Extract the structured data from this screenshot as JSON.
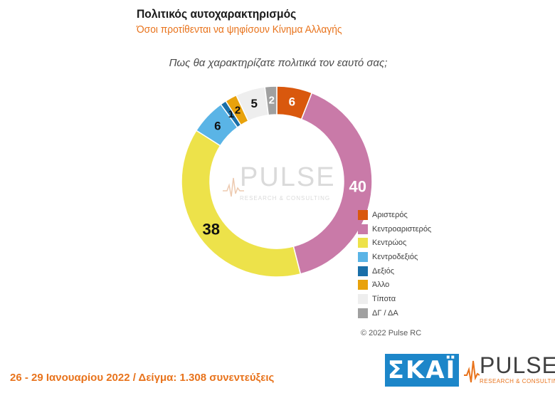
{
  "header": {
    "title": "Πολιτικός αυτοχαρακτηρισμός",
    "subtitle": "Όσοι προτίθενται να ψηφίσουν Κίνημα Αλλαγής"
  },
  "question": "Πως θα χαρακτηρίζατε πολιτικά τον εαυτό σας;",
  "chart_data": {
    "type": "pie",
    "style": "donut",
    "start_at_top": true,
    "direction": "clockwise",
    "legend_position": "right",
    "series": [
      {
        "name": "Αριστερός",
        "value": 6,
        "color": "#d9580d"
      },
      {
        "name": "Κεντροαριστερός",
        "value": 40,
        "color": "#c97aa8"
      },
      {
        "name": "Κεντρώος",
        "value": 38,
        "color": "#ede24a"
      },
      {
        "name": "Κεντροδεξιός",
        "value": 6,
        "color": "#5ab4e6"
      },
      {
        "name": "Δεξιός",
        "value": 1,
        "color": "#1a6fa8"
      },
      {
        "name": "Άλλο",
        "value": 2,
        "color": "#e8a20c"
      },
      {
        "name": "Τίποτα",
        "value": 5,
        "color": "#eeeeee"
      },
      {
        "name": "ΔΓ / ΔΑ",
        "value": 2,
        "color": "#a0a0a0"
      }
    ],
    "data_label_colors": [
      "#ffffff",
      "#ffffff",
      "#111111",
      "#111111",
      "#111111",
      "#111111",
      "#111111",
      "#ffffff"
    ]
  },
  "watermark": {
    "word": "PULSE",
    "sub": "RESEARCH & CONSULTING"
  },
  "copyright": "© 2022 Pulse RC",
  "footer": "26 - 29 Ιανουαρίου 2022 / Δείγμα: 1.308 συνεντεύξεις",
  "logos": {
    "skai": "ΣΚΑΪ",
    "pulse_word": "PULSE",
    "pulse_sub": "RESEARCH & CONSULTING"
  }
}
